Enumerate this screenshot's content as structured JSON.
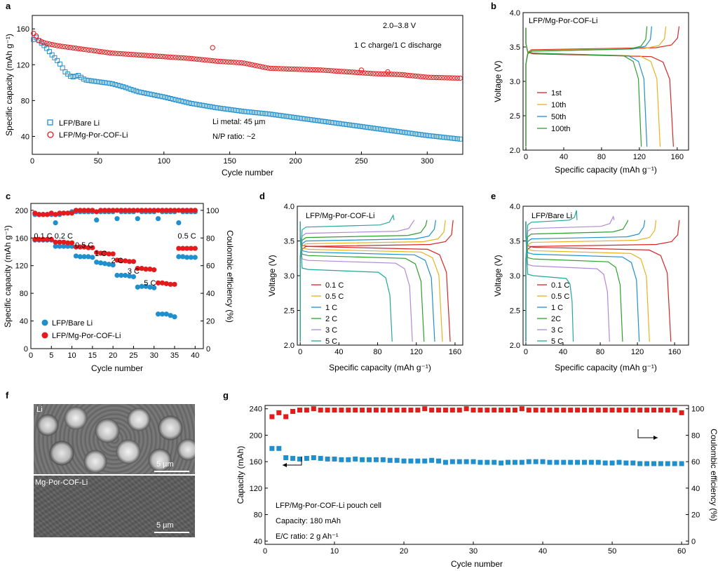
{
  "panels": {
    "a": {
      "letter": "a",
      "xlabel": "Cycle number",
      "ylabel": "Specific capacity (mAh g⁻¹)",
      "annotations": [
        "2.0–3.8 V",
        "1 C charge/1 C discharge",
        "Li metal: 45 µm",
        "N/P ratio: ~2"
      ],
      "legend": [
        "LFP/Bare Li",
        "LFP/Mg-Por-COF-Li"
      ],
      "xticks": [
        "0",
        "50",
        "100",
        "150",
        "200",
        "250",
        "300"
      ],
      "yticks": [
        "40",
        "80",
        "120",
        "160"
      ]
    },
    "b": {
      "letter": "b",
      "title": "LFP/Mg-Por-COF-Li",
      "xlabel": "Specific capacity (mAh g⁻¹)",
      "ylabel": "Voltage (V)",
      "legend": [
        "1st",
        "10th",
        "50th",
        "100th"
      ],
      "xticks": [
        "0",
        "40",
        "80",
        "120",
        "160"
      ],
      "yticks": [
        "2.0",
        "2.5",
        "3.0",
        "3.5",
        "4.0"
      ]
    },
    "c": {
      "letter": "c",
      "xlabel": "Cycle number",
      "ylabel": "Specific capacity (mAh g⁻¹)",
      "ylabel_right": "Coulombic efficiency (%)",
      "legend": [
        "LFP/Bare Li",
        "LFP/Mg-Por-COF-Li"
      ],
      "rate_labels": [
        "0.1 C",
        "0.2 C",
        "0.5 C",
        "1 C",
        "2 C",
        "3 C",
        "5 C",
        "0.5 C"
      ],
      "xticks": [
        "0",
        "5",
        "10",
        "15",
        "20",
        "25",
        "30",
        "35",
        "40"
      ],
      "yticks": [
        "0",
        "40",
        "80",
        "120",
        "160",
        "200"
      ],
      "yticks_right": [
        "0",
        "20",
        "40",
        "60",
        "80",
        "100"
      ]
    },
    "d": {
      "letter": "d",
      "title": "LFP/Mg-Por-COF-Li",
      "xlabel": "Specific capacity (mAh g⁻¹)",
      "ylabel": "Voltage (V)",
      "legend": [
        "0.1 C",
        "0.5 C",
        "1 C",
        "2 C",
        "3 C",
        "5 C"
      ],
      "xticks": [
        "0",
        "40",
        "80",
        "120",
        "160"
      ],
      "yticks": [
        "2.0",
        "2.5",
        "3.0",
        "3.5",
        "4.0"
      ]
    },
    "e": {
      "letter": "e",
      "title": "LFP/Bare Li",
      "xlabel": "Specific capacity (mAh g⁻¹)",
      "ylabel": "Voltage (V)",
      "legend": [
        "0.1 C",
        "0.5 C",
        "1 C",
        "2C",
        "3 C",
        "5 C"
      ],
      "xticks": [
        "0",
        "40",
        "80",
        "120",
        "160"
      ],
      "yticks": [
        "2.0",
        "2.5",
        "3.0",
        "3.5",
        "4.0"
      ]
    },
    "f": {
      "letter": "f",
      "top_label": "Li",
      "bottom_label": "Mg-Por-COF-Li",
      "scale_top": "5 µm",
      "scale_bottom": "5 µm"
    },
    "g": {
      "letter": "g",
      "xlabel": "Cycle number",
      "ylabel": "Capacity (mAh)",
      "ylabel_right": "Coulombic efficiency (%)",
      "annotations": [
        "LFP/Mg-Por-COF-Li pouch cell",
        "Capacity: 180 mAh",
        "E/C ratio: 2 g Ah⁻¹"
      ],
      "xticks": [
        "0",
        "10",
        "20",
        "30",
        "40",
        "50",
        "60"
      ],
      "yticks": [
        "40",
        "80",
        "120",
        "160",
        "200",
        "240"
      ],
      "yticks_right": [
        "0",
        "20",
        "40",
        "60",
        "80",
        "100"
      ]
    }
  },
  "colors": {
    "blue": "#1f8fce",
    "red": "#e41a1c",
    "c01": "#d62728",
    "c05": "#e6b21f",
    "c1": "#1f8fce",
    "c2": "#2ca02c",
    "c3": "#b388d6",
    "c5": "#26a69a"
  },
  "chart_data": [
    {
      "panel": "a",
      "type": "scatter",
      "xlabel": "Cycle number",
      "ylabel": "Specific capacity (mAh g⁻¹)",
      "xlim": [
        0,
        327
      ],
      "ylim": [
        20,
        175
      ],
      "series": [
        {
          "name": "LFP/Bare Li",
          "marker": "square",
          "x": [
            1,
            3,
            5,
            10,
            15,
            20,
            25,
            30,
            35,
            40,
            50,
            60,
            70,
            80,
            100,
            120,
            140,
            160,
            180,
            200,
            220,
            250,
            280,
            300,
            325
          ],
          "values": [
            148,
            150,
            147,
            140,
            131,
            123,
            112,
            106,
            108,
            103,
            101,
            99,
            95,
            90,
            84,
            77,
            72,
            68,
            65,
            61,
            57,
            51,
            45,
            41,
            37
          ]
        },
        {
          "name": "LFP/Mg-Por-COF-Li",
          "marker": "circle",
          "x": [
            1,
            3,
            5,
            10,
            20,
            30,
            40,
            50,
            60,
            80,
            100,
            120,
            140,
            160,
            180,
            200,
            220,
            240,
            260,
            280,
            300,
            325
          ],
          "values": [
            155,
            152,
            147,
            144,
            141,
            139,
            137,
            135,
            133,
            131,
            129,
            127,
            124,
            122,
            116,
            115,
            114,
            112,
            110,
            109,
            106,
            105
          ],
          "outliers": [
            [
              137,
              139
            ],
            [
              250,
              114
            ],
            [
              270,
              112
            ]
          ]
        }
      ]
    },
    {
      "panel": "b",
      "type": "line",
      "xlabel": "Specific capacity (mAh g⁻¹)",
      "ylabel": "Voltage (V)",
      "xlim": [
        -3,
        172
      ],
      "ylim": [
        2.0,
        4.0
      ],
      "series": [
        {
          "name": "1st",
          "color_key": "c01",
          "charge_cap": 162,
          "discharge_cap": 156,
          "charge_v": 3.48,
          "discharge_v": 3.38
        },
        {
          "name": "10th",
          "color_key": "c05",
          "charge_cap": 148,
          "discharge_cap": 142,
          "charge_v": 3.47,
          "discharge_v": 3.39
        },
        {
          "name": "50th",
          "color_key": "c1",
          "charge_cap": 133,
          "discharge_cap": 128,
          "charge_v": 3.46,
          "discharge_v": 3.39
        },
        {
          "name": "100th",
          "color_key": "c2",
          "charge_cap": 128,
          "discharge_cap": 122,
          "charge_v": 3.46,
          "discharge_v": 3.39
        }
      ]
    },
    {
      "panel": "c",
      "type": "scatter",
      "xlabel": "Cycle number",
      "ylabel": "Specific capacity (mAh g⁻¹)",
      "xlim": [
        0,
        42
      ],
      "ylim": [
        0,
        210
      ],
      "y2lim": [
        0,
        105
      ],
      "categories": [
        "0.1 C",
        "0.2 C",
        "0.5 C",
        "1 C",
        "2 C",
        "3 C",
        "5 C",
        "0.5 C"
      ],
      "series": [
        {
          "name": "LFP/Bare Li",
          "axis": "left",
          "values": [
            157,
            157,
            157,
            157,
            157,
            148,
            148,
            148,
            148,
            148,
            134,
            133,
            133,
            133,
            132,
            125,
            124,
            123,
            122,
            121,
            106,
            106,
            106,
            105,
            104,
            89,
            90,
            90,
            89,
            88,
            50,
            50,
            50,
            48,
            46,
            133,
            133,
            132,
            132,
            132
          ]
        },
        {
          "name": "LFP/Mg-Por-COF-Li",
          "axis": "left",
          "values": [
            158,
            158,
            158,
            158,
            158,
            154,
            154,
            154,
            153,
            153,
            147,
            147,
            147,
            146,
            146,
            139,
            138,
            138,
            137,
            137,
            128,
            127,
            127,
            126,
            126,
            116,
            116,
            115,
            115,
            114,
            95,
            95,
            94,
            93,
            93,
            145,
            145,
            145,
            145,
            145
          ]
        },
        {
          "name": "LFP/Bare Li CE",
          "axis": "right",
          "values": [
            97,
            97,
            97,
            97,
            97,
            91,
            97,
            98,
            98,
            99,
            99,
            99,
            99,
            99,
            99,
            93,
            99,
            99,
            99,
            99,
            94,
            99,
            99,
            99,
            99,
            94,
            99,
            99,
            99,
            99,
            94,
            99,
            99,
            99,
            99,
            91,
            99,
            99,
            99,
            99
          ]
        },
        {
          "name": "LFP/Mg-Por-COF-Li CE",
          "axis": "right",
          "values": [
            98,
            97,
            97,
            97,
            98,
            97,
            98,
            98,
            98,
            98,
            100,
            100,
            100,
            100,
            100,
            99,
            100,
            100,
            100,
            100,
            100,
            100,
            100,
            100,
            100,
            100,
            100,
            100,
            100,
            100,
            100,
            100,
            100,
            100,
            100,
            100,
            100,
            100,
            100,
            100
          ]
        }
      ]
    },
    {
      "panel": "d",
      "type": "line",
      "xlabel": "Specific capacity (mAh g⁻¹)",
      "ylabel": "Voltage (V)",
      "xlim": [
        -3,
        168
      ],
      "ylim": [
        2.0,
        4.0
      ],
      "series": [
        {
          "name": "0.1 C",
          "color_key": "c01",
          "charge_cap": 158,
          "discharge_cap": 155,
          "charge_v": 3.44,
          "discharge_v": 3.4
        },
        {
          "name": "0.5 C",
          "color_key": "c05",
          "charge_cap": 150,
          "discharge_cap": 147,
          "charge_v": 3.48,
          "discharge_v": 3.36
        },
        {
          "name": "1 C",
          "color_key": "c1",
          "charge_cap": 140,
          "discharge_cap": 139,
          "charge_v": 3.52,
          "discharge_v": 3.32
        },
        {
          "name": "2 C",
          "color_key": "c2",
          "charge_cap": 131,
          "discharge_cap": 128,
          "charge_v": 3.57,
          "discharge_v": 3.27
        },
        {
          "name": "3 C",
          "color_key": "c3",
          "charge_cap": 118,
          "discharge_cap": 116,
          "charge_v": 3.63,
          "discharge_v": 3.2
        },
        {
          "name": "5 C",
          "color_key": "c5",
          "charge_cap": 97,
          "discharge_cap": 95,
          "charge_v": 3.72,
          "discharge_v": 3.07
        }
      ]
    },
    {
      "panel": "e",
      "type": "line",
      "xlabel": "Specific capacity (mAh g⁻¹)",
      "ylabel": "Voltage (V)",
      "xlim": [
        -3,
        175
      ],
      "ylim": [
        2.0,
        4.0
      ],
      "series": [
        {
          "name": "0.1 C",
          "color_key": "c01",
          "charge_cap": 165,
          "discharge_cap": 156,
          "charge_v": 3.44,
          "discharge_v": 3.39
        },
        {
          "name": "0.5 C",
          "color_key": "c05",
          "charge_cap": 140,
          "discharge_cap": 133,
          "charge_v": 3.5,
          "discharge_v": 3.34
        },
        {
          "name": "1 C",
          "color_key": "c1",
          "charge_cap": 128,
          "discharge_cap": 122,
          "charge_v": 3.55,
          "discharge_v": 3.29
        },
        {
          "name": "2C",
          "color_key": "c2",
          "charge_cap": 110,
          "discharge_cap": 104,
          "charge_v": 3.62,
          "discharge_v": 3.22
        },
        {
          "name": "3 C",
          "color_key": "c3",
          "charge_cap": 95,
          "discharge_cap": 90,
          "charge_v": 3.7,
          "discharge_v": 3.12
        },
        {
          "name": "5 C",
          "color_key": "c5",
          "charge_cap": 55,
          "discharge_cap": 51,
          "charge_v": 3.79,
          "discharge_v": 2.98
        }
      ]
    },
    {
      "panel": "g",
      "type": "scatter",
      "xlabel": "Cycle number",
      "ylabel": "Capacity (mAh)",
      "xlim": [
        0,
        61
      ],
      "ylim": [
        35,
        245
      ],
      "y2lim": [
        -2.5,
        102.5
      ],
      "series": [
        {
          "name": "Capacity",
          "axis": "left",
          "x": [
            1,
            2,
            3,
            4,
            5,
            6,
            7,
            8,
            9,
            10,
            11,
            12,
            13,
            14,
            15,
            16,
            17,
            18,
            19,
            20,
            21,
            22,
            23,
            24,
            25,
            26,
            27,
            28,
            29,
            30,
            31,
            32,
            33,
            34,
            35,
            36,
            37,
            38,
            39,
            40,
            41,
            42,
            43,
            44,
            45,
            46,
            47,
            48,
            49,
            50,
            51,
            52,
            53,
            54,
            55,
            56,
            57,
            58,
            59,
            60
          ],
          "values": [
            180,
            180,
            166,
            165,
            164,
            165,
            166,
            165,
            164,
            164,
            163,
            163,
            164,
            163,
            163,
            163,
            163,
            162,
            162,
            161,
            161,
            161,
            161,
            162,
            161,
            159,
            160,
            160,
            160,
            160,
            159,
            159,
            159,
            158,
            159,
            159,
            159,
            160,
            160,
            160,
            159,
            159,
            159,
            159,
            159,
            159,
            159,
            159,
            158,
            158,
            159,
            158,
            158,
            157,
            157,
            157,
            157,
            157,
            157,
            157
          ]
        },
        {
          "name": "Coulombic efficiency",
          "axis": "right",
          "x": [
            1,
            2,
            3,
            4,
            5,
            6,
            7,
            8,
            9,
            10,
            11,
            12,
            13,
            14,
            15,
            16,
            17,
            18,
            19,
            20,
            21,
            22,
            23,
            24,
            25,
            26,
            27,
            28,
            29,
            30,
            31,
            32,
            33,
            34,
            35,
            36,
            37,
            38,
            39,
            40,
            41,
            42,
            43,
            44,
            45,
            46,
            47,
            48,
            49,
            50,
            51,
            52,
            53,
            54,
            55,
            56,
            57,
            58,
            59,
            60
          ],
          "values": [
            94,
            97,
            94,
            98,
            99,
            99,
            100,
            99,
            99,
            99,
            99,
            99,
            99,
            99,
            99,
            99,
            99,
            99,
            99,
            99,
            99,
            99,
            100,
            99,
            99,
            99,
            99,
            99,
            100,
            99,
            99,
            99,
            99,
            99,
            99,
            99,
            100,
            99,
            99,
            99,
            99,
            99,
            99,
            99,
            99,
            99,
            99,
            99,
            99,
            99,
            99,
            99,
            99,
            99,
            99,
            99,
            99,
            99,
            99,
            97
          ]
        }
      ]
    }
  ]
}
